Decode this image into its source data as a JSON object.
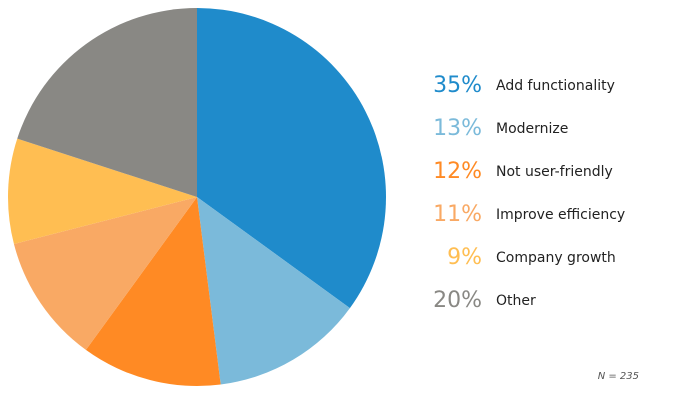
{
  "chart_data": {
    "type": "pie",
    "slices": [
      {
        "label": "Add functionality",
        "display": "35%",
        "value": 35,
        "color": "#1f8bcb"
      },
      {
        "label": "Modernize",
        "display": "13%",
        "value": 13,
        "color": "#7bbada"
      },
      {
        "label": "Not user-friendly",
        "display": "12%",
        "value": 12,
        "color": "#ff8a24"
      },
      {
        "label": "Improve efficiency",
        "display": "11%",
        "value": 11,
        "color": "#f9a964"
      },
      {
        "label": "Company growth",
        "display": "9%",
        "value": 9,
        "color": "#ffbe52"
      },
      {
        "label": "Other",
        "display": "20%",
        "value": 20,
        "color": "#898884"
      }
    ],
    "legend_position": "right",
    "note": "N = 235"
  }
}
